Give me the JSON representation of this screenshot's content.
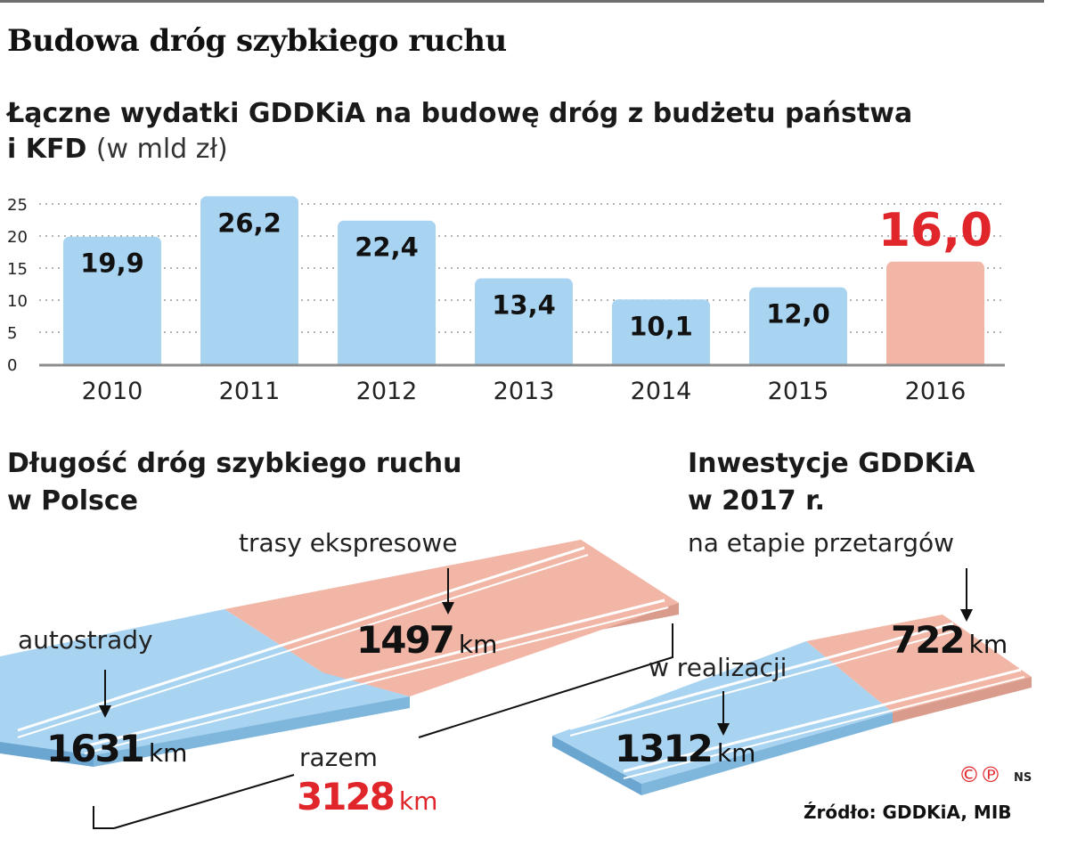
{
  "title": "Budowa dróg szybkiego ruchu",
  "subtitle_bold_1": "Łączne wydatki GDDKiA na budowę dróg z budżetu państwa",
  "subtitle_bold_2": "i KFD",
  "subtitle_unit": "(w mld zł)",
  "chart_data": {
    "type": "bar",
    "categories": [
      "2010",
      "2011",
      "2012",
      "2013",
      "2014",
      "2015",
      "2016"
    ],
    "values": [
      19.9,
      26.2,
      22.4,
      13.4,
      10.1,
      12.0,
      16.0
    ],
    "value_labels": [
      "19,9",
      "26,2",
      "22,4",
      "13,4",
      "10,1",
      "12,0",
      "16,0"
    ],
    "highlight_index": 6,
    "yticks": [
      "0",
      "5",
      "10",
      "15",
      "20",
      "25"
    ],
    "ylim": [
      0,
      27
    ],
    "grid": true,
    "colors": {
      "bar": "#a9d4f1",
      "highlight_bar": "#f2b6a7",
      "highlight_label": "#e1262b"
    }
  },
  "length_section": {
    "title_1": "Długość dróg szybkiego ruchu",
    "title_2": "w Polsce",
    "express_label": "trasy ekspresowe",
    "express_value": "1497",
    "motorway_label": "autostrady",
    "motorway_value": "1631",
    "total_label": "razem",
    "total_value": "3128",
    "unit": "km"
  },
  "invest_section": {
    "title_1": "Inwestycje GDDKiA",
    "title_2": "w 2017 r.",
    "tender_label": "na etapie przetargów",
    "tender_value": "722",
    "progress_label": "w realizacji",
    "progress_value": "1312",
    "unit": "km"
  },
  "copyright": "©℗",
  "author": "NS",
  "source": "Źródło: GDDKiA, MIB"
}
